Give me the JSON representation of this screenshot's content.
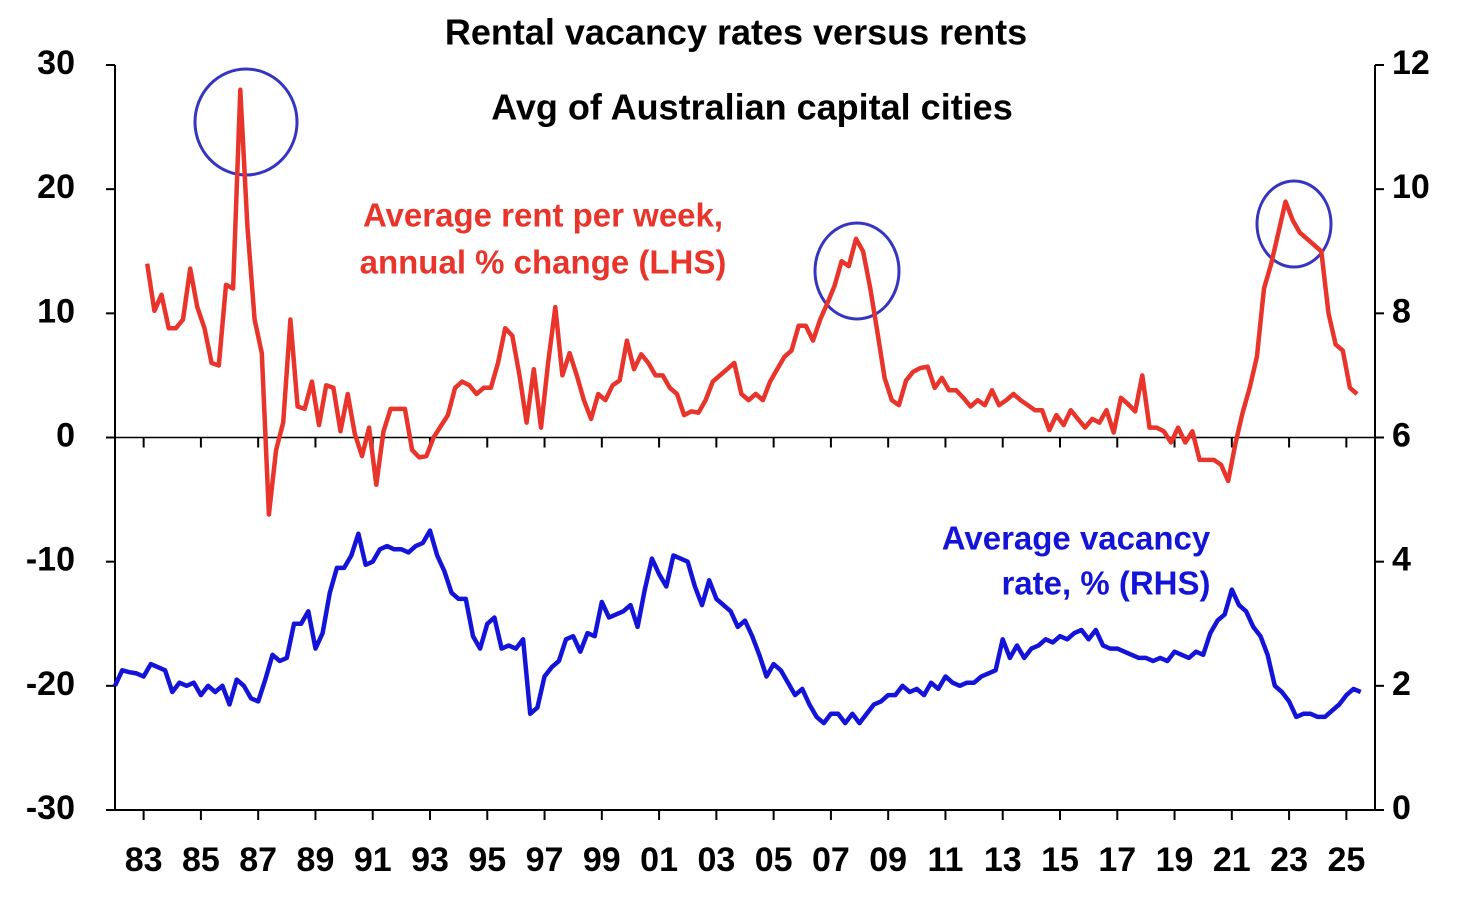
{
  "chart_data": {
    "type": "line",
    "title": "Rental vacancy rates versus rents",
    "subtitle": "Avg of Australian capital cities",
    "xlim": [
      1982.5,
      2026.5
    ],
    "xticks": [
      {
        "value": 1983.5,
        "label": "83"
      },
      {
        "value": 1985.5,
        "label": "85"
      },
      {
        "value": 1987.5,
        "label": "87"
      },
      {
        "value": 1989.5,
        "label": "89"
      },
      {
        "value": 1991.5,
        "label": "91"
      },
      {
        "value": 1993.5,
        "label": "93"
      },
      {
        "value": 1995.5,
        "label": "95"
      },
      {
        "value": 1997.5,
        "label": "97"
      },
      {
        "value": 1999.5,
        "label": "99"
      },
      {
        "value": 2001.5,
        "label": "01"
      },
      {
        "value": 2003.5,
        "label": "03"
      },
      {
        "value": 2005.5,
        "label": "05"
      },
      {
        "value": 2007.5,
        "label": "07"
      },
      {
        "value": 2009.5,
        "label": "09"
      },
      {
        "value": 2011.5,
        "label": "11"
      },
      {
        "value": 2013.5,
        "label": "13"
      },
      {
        "value": 2015.5,
        "label": "15"
      },
      {
        "value": 2017.5,
        "label": "17"
      },
      {
        "value": 2019.5,
        "label": "19"
      },
      {
        "value": 2021.5,
        "label": "21"
      },
      {
        "value": 2023.5,
        "label": "23"
      },
      {
        "value": 2025.5,
        "label": "25"
      }
    ],
    "ylim": [
      -30,
      30
    ],
    "yticks": [
      30,
      20,
      10,
      0,
      -10,
      -20,
      -30
    ],
    "y2lim": [
      0,
      12
    ],
    "y2ticks": [
      12,
      10,
      8,
      6,
      4,
      2,
      0
    ],
    "grid": false,
    "series": [
      {
        "name": [
          "Average rent per week,",
          "annual % change (LHS)"
        ],
        "color": "#e8342a",
        "axis": "y",
        "x": [
          1983.625,
          1983.875,
          1984.125,
          1984.375,
          1984.625,
          1984.875,
          1985.125,
          1985.375,
          1985.625,
          1985.875,
          1986.125,
          1986.375,
          1986.625,
          1986.875,
          1987.125,
          1987.375,
          1987.625,
          1987.875,
          1988.125,
          1988.375,
          1988.625,
          1988.875,
          1989.125,
          1989.375,
          1989.625,
          1989.875,
          1990.125,
          1990.375,
          1990.625,
          1990.875,
          1991.125,
          1991.375,
          1991.625,
          1991.875,
          1992.125,
          1992.375,
          1992.625,
          1992.875,
          1993.125,
          1993.375,
          1993.625,
          1993.875,
          1994.125,
          1994.375,
          1994.625,
          1994.875,
          1995.125,
          1995.375,
          1995.625,
          1995.875,
          1996.125,
          1996.375,
          1996.625,
          1996.875,
          1997.125,
          1997.375,
          1997.625,
          1997.875,
          1998.125,
          1998.375,
          1998.625,
          1998.875,
          1999.125,
          1999.375,
          1999.625,
          1999.875,
          2000.125,
          2000.375,
          2000.625,
          2000.875,
          2001.125,
          2001.375,
          2001.625,
          2001.875,
          2002.125,
          2002.375,
          2002.625,
          2002.875,
          2003.125,
          2003.375,
          2003.625,
          2003.875,
          2004.125,
          2004.375,
          2004.625,
          2004.875,
          2005.125,
          2005.375,
          2005.625,
          2005.875,
          2006.125,
          2006.375,
          2006.625,
          2006.875,
          2007.125,
          2007.375,
          2007.625,
          2007.875,
          2008.125,
          2008.375,
          2008.625,
          2008.875,
          2009.125,
          2009.375,
          2009.625,
          2009.875,
          2010.125,
          2010.375,
          2010.625,
          2010.875,
          2011.125,
          2011.375,
          2011.625,
          2011.875,
          2012.125,
          2012.375,
          2012.625,
          2012.875,
          2013.125,
          2013.375,
          2013.625,
          2013.875,
          2014.125,
          2014.375,
          2014.625,
          2014.875,
          2015.125,
          2015.375,
          2015.625,
          2015.875,
          2016.125,
          2016.375,
          2016.625,
          2016.875,
          2017.125,
          2017.375,
          2017.625,
          2017.875,
          2018.125,
          2018.375,
          2018.625,
          2018.875,
          2019.125,
          2019.375,
          2019.625,
          2019.875,
          2020.125,
          2020.375,
          2020.625,
          2020.875,
          2021.125,
          2021.375,
          2021.625,
          2021.875,
          2022.125,
          2022.375,
          2022.625,
          2022.875,
          2023.125,
          2023.375,
          2023.625,
          2023.875,
          2024.125,
          2024.375,
          2024.625,
          2024.875,
          2025.125,
          2025.375,
          2025.625,
          2025.875
        ],
        "values": [
          14,
          10.2,
          11.5,
          8.8,
          8.8,
          9.5,
          13.6,
          10.5,
          8.8,
          6,
          5.8,
          12.3,
          12,
          28,
          17,
          9.5,
          6.8,
          -6.2,
          -1,
          1.2,
          9.5,
          2.5,
          2.3,
          4.5,
          1,
          4.2,
          4,
          0.5,
          3.5,
          0.3,
          -1.5,
          0.8,
          -3.8,
          0.5,
          2.3,
          2.3,
          2.3,
          -1,
          -1.6,
          -1.5,
          0,
          0.9,
          1.8,
          4,
          4.5,
          4.2,
          3.5,
          4,
          4,
          6,
          8.8,
          8.2,
          5,
          1.2,
          5.5,
          0.8,
          6,
          10.5,
          5,
          6.8,
          5,
          3,
          1.5,
          3.5,
          3,
          4.2,
          4.6,
          7.8,
          5.5,
          6.7,
          6,
          5,
          5,
          4,
          3.5,
          1.8,
          2.1,
          2,
          3,
          4.5,
          5,
          5.5,
          6,
          3.5,
          3,
          3.5,
          3,
          4.5,
          5.5,
          6.5,
          7,
          9,
          9,
          7.8,
          9.5,
          10.8,
          12.2,
          14.2,
          13.8,
          16,
          15,
          12,
          8.5,
          4.8,
          3,
          2.6,
          4.6,
          5.3,
          5.6,
          5.7,
          4,
          4.8,
          3.8,
          3.8,
          3.2,
          2.5,
          3,
          2.6,
          3.8,
          2.6,
          3,
          3.5,
          3,
          2.6,
          2.2,
          2.2,
          0.6,
          1.8,
          1,
          2.2,
          1.5,
          0.8,
          1.5,
          1.2,
          2.2,
          0.4,
          3.2,
          2.7,
          2.1,
          5,
          0.8,
          0.8,
          0.5,
          -0.4,
          0.8,
          -0.4,
          0.5,
          -1.8,
          -1.8,
          -1.8,
          -2.2,
          -3.5,
          -0.5,
          2,
          4,
          6.5,
          12,
          14,
          16.5,
          19,
          17.5,
          16.5,
          16,
          15.5,
          15,
          10,
          7.5,
          7,
          4,
          3.5
        ]
      },
      {
        "name": [
          "Average vacancy",
          "rate, % (RHS)"
        ],
        "color": "#1414d8",
        "axis": "y2",
        "x": [
          1982.5,
          1982.75,
          1983,
          1983.25,
          1983.5,
          1983.75,
          1984,
          1984.25,
          1984.5,
          1984.75,
          1985,
          1985.25,
          1985.5,
          1985.75,
          1986,
          1986.25,
          1986.5,
          1986.75,
          1987,
          1987.25,
          1987.5,
          1987.75,
          1988,
          1988.25,
          1988.5,
          1988.75,
          1989,
          1989.25,
          1989.5,
          1989.75,
          1990,
          1990.25,
          1990.5,
          1990.75,
          1991,
          1991.25,
          1991.5,
          1991.75,
          1992,
          1992.25,
          1992.5,
          1992.75,
          1993,
          1993.25,
          1993.5,
          1993.75,
          1994,
          1994.25,
          1994.5,
          1994.75,
          1995,
          1995.25,
          1995.5,
          1995.75,
          1996,
          1996.25,
          1996.5,
          1996.75,
          1997,
          1997.25,
          1997.5,
          1997.75,
          1998,
          1998.25,
          1998.5,
          1998.75,
          1999,
          1999.25,
          1999.5,
          1999.75,
          2000,
          2000.25,
          2000.5,
          2000.75,
          2001,
          2001.25,
          2001.5,
          2001.75,
          2002,
          2002.25,
          2002.5,
          2002.75,
          2003,
          2003.25,
          2003.5,
          2003.75,
          2004,
          2004.25,
          2004.5,
          2004.75,
          2005,
          2005.25,
          2005.5,
          2005.75,
          2006,
          2006.25,
          2006.5,
          2006.75,
          2007,
          2007.25,
          2007.5,
          2007.75,
          2008,
          2008.25,
          2008.5,
          2008.75,
          2009,
          2009.25,
          2009.5,
          2009.75,
          2010,
          2010.25,
          2010.5,
          2010.75,
          2011,
          2011.25,
          2011.5,
          2011.75,
          2012,
          2012.25,
          2012.5,
          2012.75,
          2013,
          2013.25,
          2013.5,
          2013.75,
          2014,
          2014.25,
          2014.5,
          2014.75,
          2015,
          2015.25,
          2015.5,
          2015.75,
          2016,
          2016.25,
          2016.5,
          2016.75,
          2017,
          2017.25,
          2017.5,
          2017.75,
          2018,
          2018.25,
          2018.5,
          2018.75,
          2019,
          2019.25,
          2019.5,
          2019.75,
          2020,
          2020.25,
          2020.5,
          2020.75,
          2021,
          2021.25,
          2021.5,
          2021.75,
          2022,
          2022.25,
          2022.5,
          2022.75,
          2023,
          2023.25,
          2023.5,
          2023.75,
          2024,
          2024.25,
          2024.5,
          2024.75,
          2025,
          2025.25,
          2025.5,
          2025.75,
          2026
        ],
        "values": [
          2.0,
          2.25,
          2.22,
          2.2,
          2.15,
          2.35,
          2.3,
          2.25,
          1.9,
          2.05,
          2.0,
          2.05,
          1.85,
          2.0,
          1.9,
          2.0,
          1.7,
          2.1,
          2.0,
          1.8,
          1.75,
          2.1,
          2.5,
          2.4,
          2.45,
          3.0,
          3.0,
          3.2,
          2.6,
          2.85,
          3.5,
          3.9,
          3.9,
          4.1,
          4.45,
          3.95,
          4.0,
          4.2,
          4.25,
          4.2,
          4.2,
          4.15,
          4.25,
          4.3,
          4.5,
          4.1,
          3.85,
          3.5,
          3.4,
          3.4,
          2.8,
          2.6,
          3.0,
          3.1,
          2.6,
          2.65,
          2.6,
          2.75,
          1.55,
          1.65,
          2.15,
          2.3,
          2.4,
          2.75,
          2.8,
          2.55,
          2.85,
          2.8,
          3.35,
          3.1,
          3.15,
          3.2,
          3.3,
          2.95,
          3.55,
          4.05,
          3.8,
          3.6,
          4.1,
          4.05,
          4.0,
          3.6,
          3.3,
          3.7,
          3.4,
          3.3,
          3.2,
          2.95,
          3.05,
          2.8,
          2.5,
          2.15,
          2.35,
          2.25,
          2.05,
          1.85,
          1.95,
          1.7,
          1.5,
          1.4,
          1.55,
          1.55,
          1.4,
          1.55,
          1.4,
          1.55,
          1.7,
          1.75,
          1.85,
          1.85,
          2.0,
          1.9,
          1.95,
          1.85,
          2.05,
          1.95,
          2.15,
          2.05,
          2.0,
          2.05,
          2.05,
          2.15,
          2.2,
          2.25,
          2.75,
          2.45,
          2.65,
          2.45,
          2.6,
          2.65,
          2.75,
          2.7,
          2.8,
          2.75,
          2.85,
          2.9,
          2.75,
          2.9,
          2.65,
          2.6,
          2.6,
          2.55,
          2.5,
          2.45,
          2.45,
          2.4,
          2.45,
          2.4,
          2.55,
          2.5,
          2.45,
          2.55,
          2.5,
          2.85,
          3.05,
          3.15,
          3.55,
          3.3,
          3.2,
          2.95,
          2.8,
          2.5,
          2.0,
          1.9,
          1.75,
          1.5,
          1.55,
          1.55,
          1.5,
          1.5,
          1.6,
          1.7,
          1.85,
          1.95,
          1.9
        ]
      }
    ]
  }
}
